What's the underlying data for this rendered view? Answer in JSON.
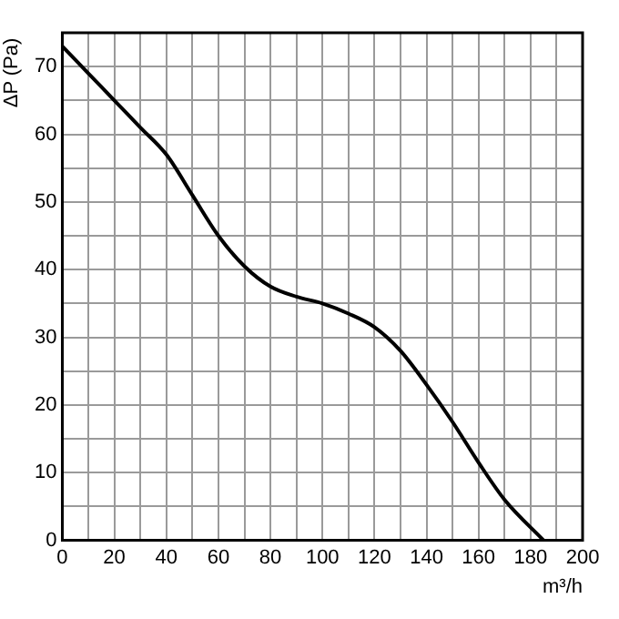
{
  "chart_data": {
    "type": "line",
    "xlabel": "m³/h",
    "ylabel": "ΔP (Pa)",
    "x": [
      0,
      10,
      20,
      30,
      40,
      50,
      60,
      70,
      80,
      90,
      100,
      110,
      120,
      130,
      140,
      150,
      160,
      170,
      185
    ],
    "series": [
      {
        "color": "#000000",
        "values": [
          73,
          69,
          65,
          61,
          57,
          51,
          45,
          40.5,
          37.5,
          36,
          35,
          33.5,
          31.5,
          28,
          23,
          17.5,
          11.5,
          6,
          0
        ]
      }
    ],
    "xlim": [
      0,
      200
    ],
    "ylim": [
      0,
      75
    ],
    "xticks": [
      0,
      {
        "value": 10,
        "label": null
      },
      20,
      {
        "value": 30,
        "label": null
      },
      40,
      {
        "value": 50,
        "label": null
      },
      60,
      {
        "value": 70,
        "label": null
      },
      80,
      {
        "value": 90,
        "label": null
      },
      100,
      {
        "value": 110,
        "label": null
      },
      120,
      {
        "value": 130,
        "label": null
      },
      140,
      {
        "value": 150,
        "label": null
      },
      160,
      {
        "value": 170,
        "label": null
      },
      180,
      {
        "value": 190,
        "label": null
      },
      200
    ],
    "yticks": [
      0,
      {
        "value": 5,
        "label": null
      },
      10,
      {
        "value": 15,
        "label": null
      },
      20,
      {
        "value": 25,
        "label": null
      },
      30,
      {
        "value": 35,
        "label": null
      },
      40,
      {
        "value": 45,
        "label": null
      },
      50,
      {
        "value": 55,
        "label": null
      },
      60,
      {
        "value": 65,
        "label": null
      },
      70,
      {
        "value": 75,
        "label": null
      }
    ],
    "grid": true,
    "legend": false,
    "marker": "none",
    "line_style": "solid"
  }
}
